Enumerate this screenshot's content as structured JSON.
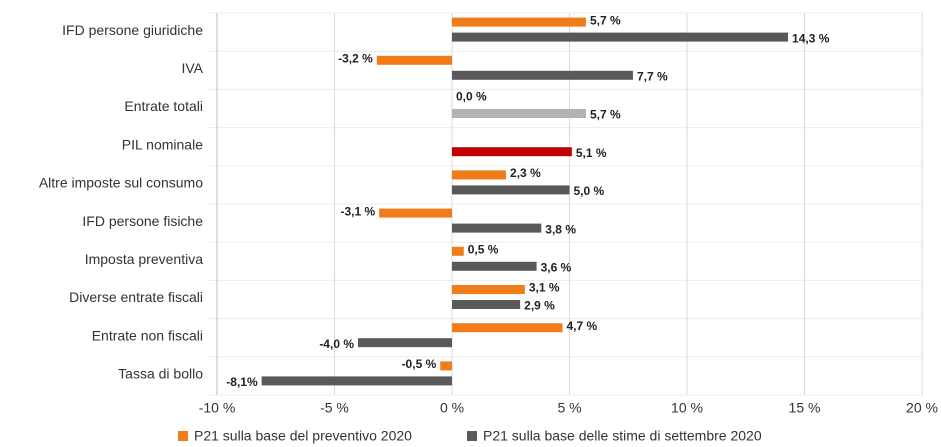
{
  "chart_data": {
    "type": "hbar",
    "categories": [
      "IFD persone giuridiche",
      "IVA",
      "Entrate totali",
      "PIL nominale",
      "Altre imposte sul consumo",
      "IFD persone fisiche",
      "Imposta preventiva",
      "Diverse entrate fiscali",
      "Entrate non fiscali",
      "Tassa di bollo"
    ],
    "series": [
      {
        "name": "P21 sulla base del preventivo 2020",
        "color": "#f07c1a",
        "values": [
          5.7,
          -3.2,
          0.0,
          null,
          2.3,
          -3.1,
          0.5,
          3.1,
          4.7,
          -0.5
        ],
        "value_labels": [
          "5,7 %",
          "-3,2 %",
          "0,0 %",
          null,
          "2,3 %",
          "-3,1 %",
          "0,5 %",
          "3,1 %",
          "4,7 %",
          "-0,5 %"
        ]
      },
      {
        "name": "P21 sulla base delle stime di settembre 2020",
        "color": "#595959",
        "colors": [
          "#595959",
          "#595959",
          "#b3b3b3",
          "#c00000",
          "#595959",
          "#595959",
          "#595959",
          "#595959",
          "#595959",
          "#595959"
        ],
        "values": [
          14.3,
          7.7,
          5.7,
          5.1,
          5.0,
          3.8,
          3.6,
          2.9,
          -4.0,
          -8.1
        ],
        "value_labels": [
          "14,3 %",
          "7,7 %",
          "5,7 %",
          "5,1 %",
          "5,0 %",
          "3,8 %",
          "3,6 %",
          "2,9 %",
          "-4,0 %",
          "-8,1%"
        ]
      }
    ],
    "xlim": [
      -10,
      20
    ],
    "xticks": [
      {
        "value": -10,
        "label": "-10 %"
      },
      {
        "value": -5,
        "label": "-5 %"
      },
      {
        "value": 0,
        "label": "0 %"
      },
      {
        "value": 5,
        "label": "5 %"
      },
      {
        "value": 10,
        "label": "10 %"
      },
      {
        "value": 15,
        "label": "15 %"
      },
      {
        "value": 20,
        "label": "20 %"
      }
    ],
    "grid": true,
    "legend": "bottom"
  }
}
